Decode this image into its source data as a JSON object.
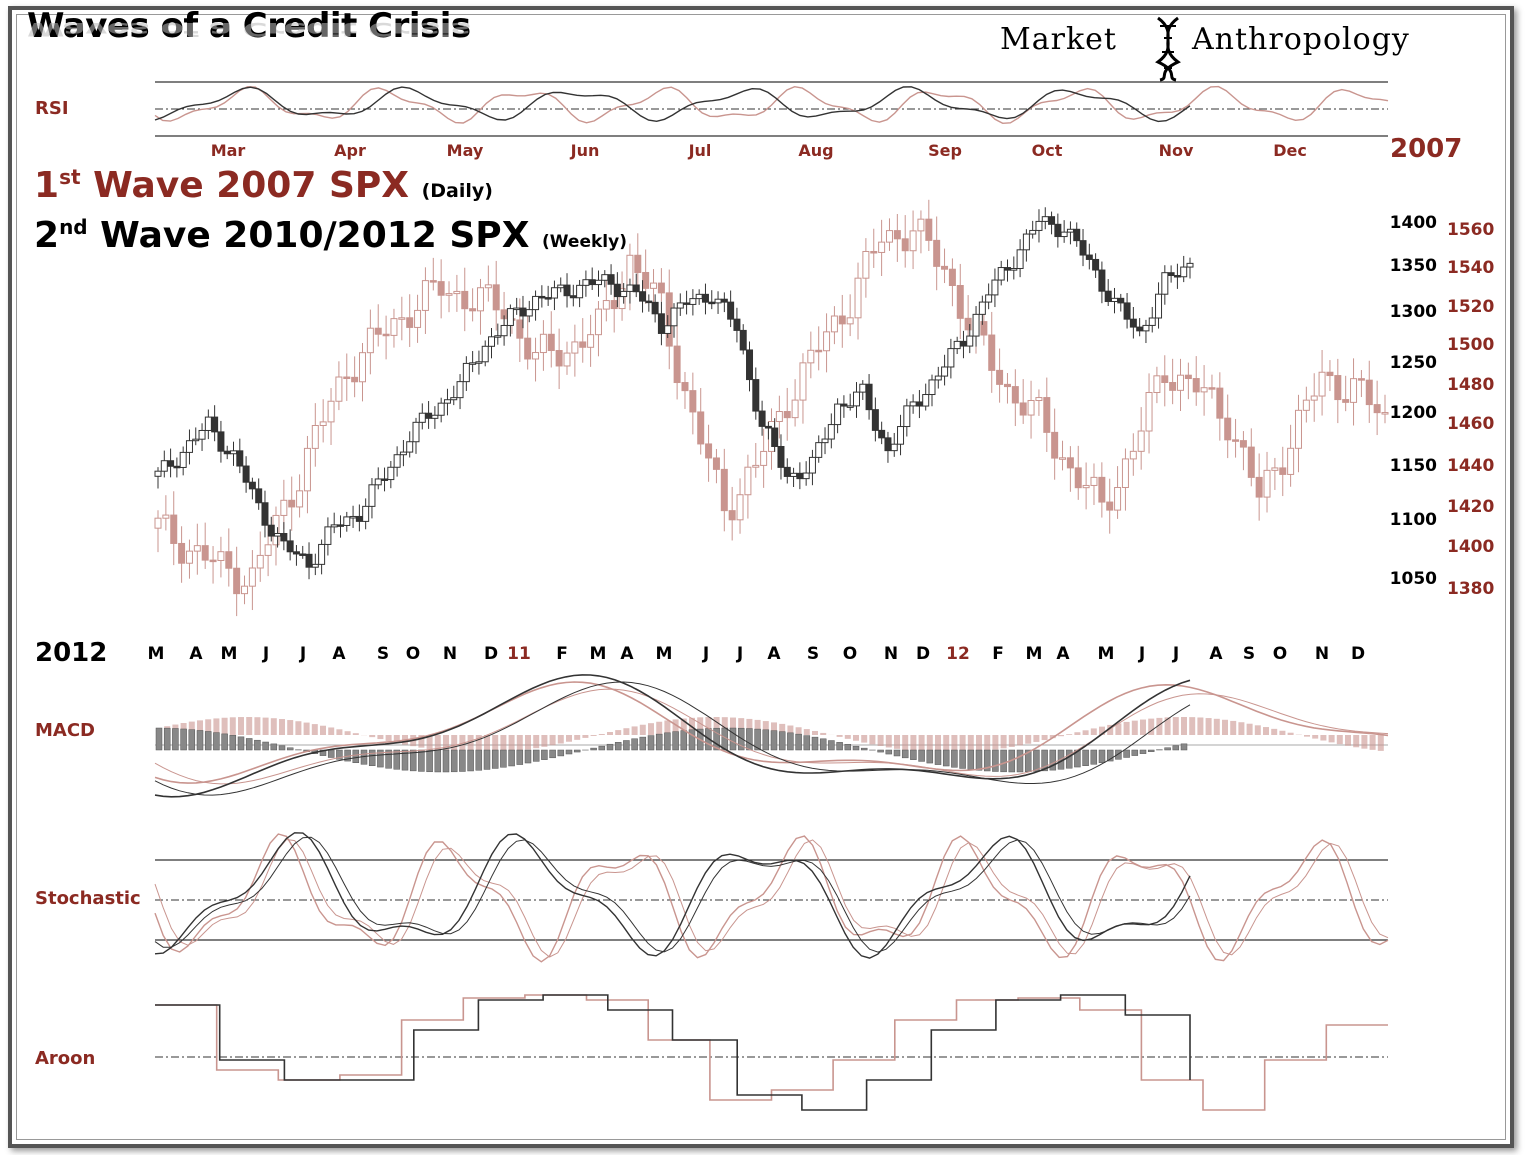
{
  "title": "Waves of a Credit Crisis",
  "brand": {
    "left": "Market",
    "right": "Anthropology",
    "logo_icon": "dna-helix-icon"
  },
  "headings": {
    "wave1_num": "1",
    "wave1_sup": "st",
    "wave1_text": "Wave 2007 SPX",
    "wave1_note": "(Daily)",
    "wave2_num": "2",
    "wave2_sup": "nd",
    "wave2_text": "Wave 2010/2012  SPX",
    "wave2_note": "(Weekly)"
  },
  "panel_labels": {
    "rsi": "RSI",
    "macd": "MACD",
    "stochastic": "Stochastic",
    "aroon": "Aroon"
  },
  "colors": {
    "wave2007": "#c9958f",
    "wave2012": "#333333",
    "accent": "#8b2a22"
  },
  "chart_data": [
    {
      "type": "line",
      "year_label": "2007",
      "months_2007": [
        "Mar",
        "Apr",
        "May",
        "Jun",
        "Jul",
        "Aug",
        "Sep",
        "Oct",
        "Nov",
        "Dec"
      ],
      "left_axis_ticks_2010_2012": [
        "1400",
        "1350",
        "1300",
        "1250",
        "1200",
        "1150",
        "1100",
        "1050"
      ],
      "right_axis_ticks_2007": [
        "1560",
        "1540",
        "1520",
        "1500",
        "1480",
        "1460",
        "1440",
        "1420",
        "1400",
        "1380"
      ],
      "series": [
        {
          "name": "1st Wave 2007 SPX (Daily)",
          "points": [
            1410,
            1400,
            1390,
            1385,
            1420,
            1455,
            1490,
            1505,
            1520,
            1530,
            1525,
            1520,
            1495,
            1500,
            1510,
            1545,
            1520,
            1465,
            1420,
            1440,
            1475,
            1500,
            1525,
            1555,
            1560,
            1540,
            1505,
            1480,
            1465,
            1440,
            1420,
            1450,
            1490,
            1480,
            1465,
            1425,
            1455,
            1485,
            1480,
            1465
          ]
        },
        {
          "name": "2nd Wave 2010/2012 SPX (Weekly)",
          "points": [
            1150,
            1175,
            1200,
            1170,
            1120,
            1080,
            1065,
            1100,
            1115,
            1150,
            1190,
            1215,
            1240,
            1280,
            1305,
            1325,
            1330,
            1340,
            1340,
            1330,
            1300,
            1320,
            1330,
            1295,
            1200,
            1150,
            1160,
            1220,
            1230,
            1175,
            1220,
            1250,
            1285,
            1330,
            1365,
            1400,
            1395,
            1360,
            1320,
            1290,
            1340,
            1360
          ]
        }
      ],
      "x_labels_2012": [
        {
          "t": "M",
          "c": "k"
        },
        {
          "t": "A",
          "c": "k"
        },
        {
          "t": "M",
          "c": "k"
        },
        {
          "t": "J",
          "c": "k"
        },
        {
          "t": "J",
          "c": "k"
        },
        {
          "t": "A",
          "c": "k"
        },
        {
          "t": "S",
          "c": "k"
        },
        {
          "t": "O",
          "c": "k"
        },
        {
          "t": "N",
          "c": "k"
        },
        {
          "t": "D",
          "c": "k"
        },
        {
          "t": "11",
          "c": "r"
        },
        {
          "t": "F",
          "c": "k"
        },
        {
          "t": "M",
          "c": "k"
        },
        {
          "t": "A",
          "c": "k"
        },
        {
          "t": "M",
          "c": "k"
        },
        {
          "t": "J",
          "c": "k"
        },
        {
          "t": "J",
          "c": "k"
        },
        {
          "t": "A",
          "c": "k"
        },
        {
          "t": "S",
          "c": "k"
        },
        {
          "t": "O",
          "c": "k"
        },
        {
          "t": "N",
          "c": "k"
        },
        {
          "t": "D",
          "c": "k"
        },
        {
          "t": "12",
          "c": "r"
        },
        {
          "t": "F",
          "c": "k"
        },
        {
          "t": "M",
          "c": "k"
        },
        {
          "t": "A",
          "c": "k"
        },
        {
          "t": "M",
          "c": "k"
        },
        {
          "t": "J",
          "c": "k"
        },
        {
          "t": "J",
          "c": "k"
        },
        {
          "t": "A",
          "c": "k"
        },
        {
          "t": "S",
          "c": "k"
        },
        {
          "t": "O",
          "c": "k"
        },
        {
          "t": "N",
          "c": "k"
        },
        {
          "t": "D",
          "c": "k"
        }
      ],
      "year_label_2012": "2012"
    }
  ]
}
